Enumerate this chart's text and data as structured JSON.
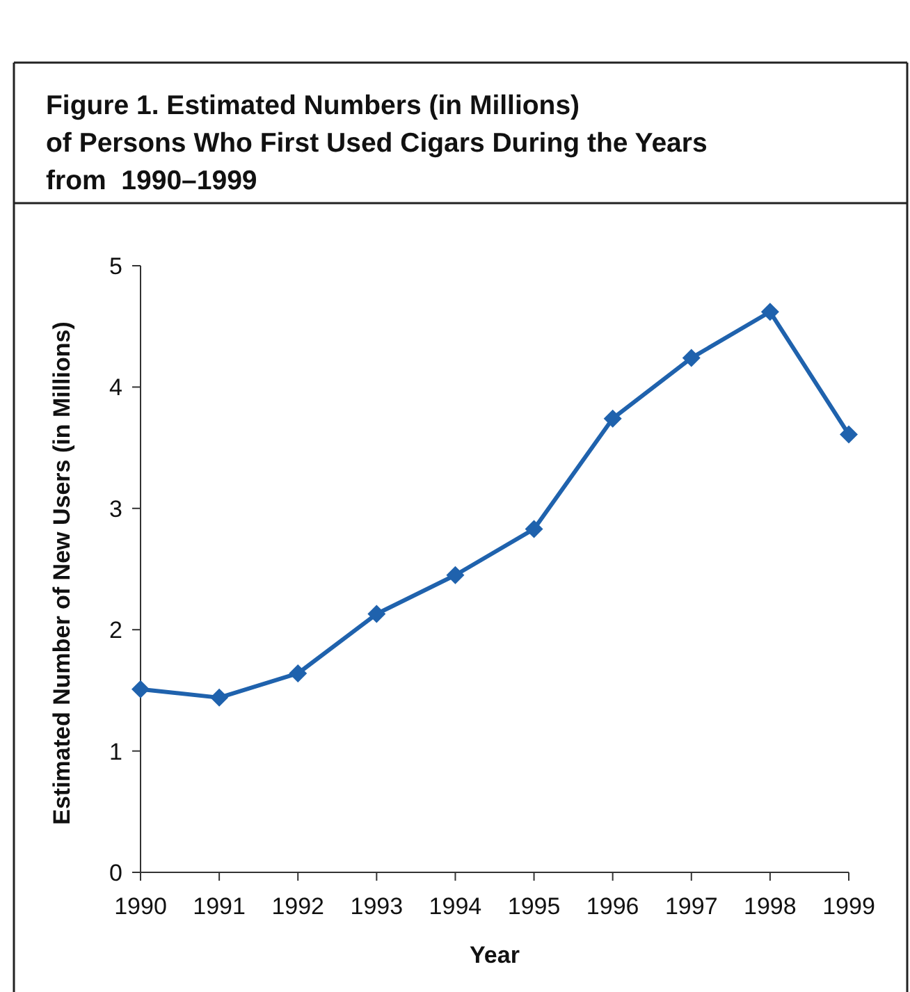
{
  "chart_data": {
    "type": "line",
    "title": "Figure 1. Estimated Numbers (in Millions)\nof Persons Who First Used Cigars During the Years\nfrom  1990–1999",
    "xlabel": "Year",
    "ylabel": "Estimated Number of New Users (in Millions)",
    "categories": [
      "1990",
      "1991",
      "1992",
      "1993",
      "1994",
      "1995",
      "1996",
      "1997",
      "1998",
      "1999"
    ],
    "series": [
      {
        "color": "#1f62ad",
        "values": [
          1.51,
          1.44,
          1.64,
          2.13,
          2.45,
          2.83,
          3.74,
          4.24,
          4.62,
          3.61
        ]
      }
    ],
    "ylim": [
      0,
      5
    ],
    "yticks": [
      0,
      1,
      2,
      3,
      4,
      5
    ],
    "grid": false,
    "marker": "diamond",
    "line_style": "solid"
  }
}
